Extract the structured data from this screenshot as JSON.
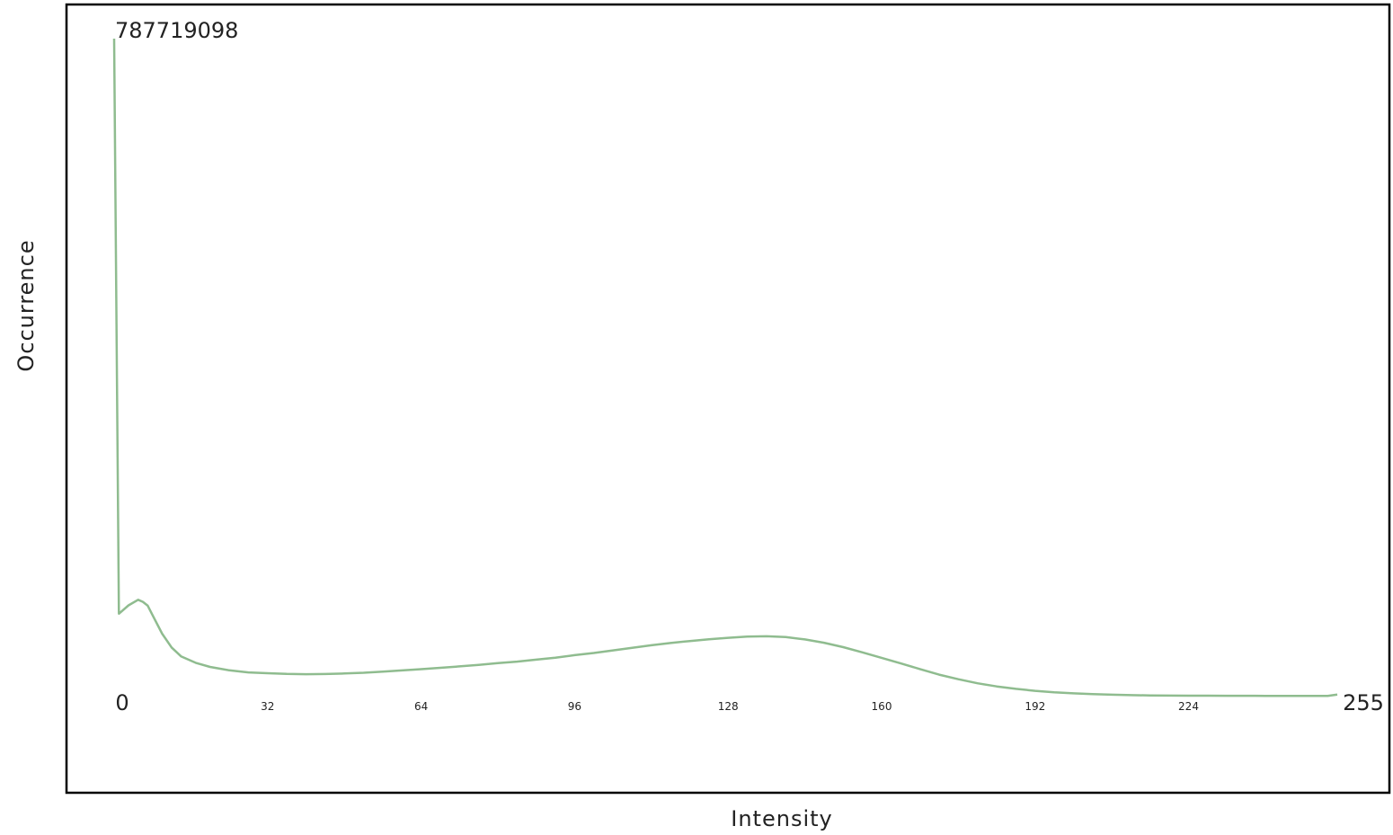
{
  "chart_data": {
    "type": "line",
    "xlabel": "Intensity",
    "ylabel": "Occurrence",
    "max_label": "787719098",
    "xlim": [
      0,
      255
    ],
    "ylim": [
      0,
      787719098
    ],
    "x_ticks": [
      {
        "value": 0,
        "label": "0",
        "size": "large"
      },
      {
        "value": 32,
        "label": "32",
        "size": "small"
      },
      {
        "value": 64,
        "label": "64",
        "size": "small"
      },
      {
        "value": 96,
        "label": "96",
        "size": "small"
      },
      {
        "value": 128,
        "label": "128",
        "size": "small"
      },
      {
        "value": 160,
        "label": "160",
        "size": "small"
      },
      {
        "value": 192,
        "label": "192",
        "size": "small"
      },
      {
        "value": 224,
        "label": "224",
        "size": "small"
      },
      {
        "value": 255,
        "label": "255",
        "size": "large"
      }
    ],
    "grid": false,
    "line_color": "#8fbc8f",
    "series": [
      {
        "points": [
          [
            0,
            787719098
          ],
          [
            1,
            100200000
          ],
          [
            3,
            110100000
          ],
          [
            5,
            116800000
          ],
          [
            6,
            114300000
          ],
          [
            7,
            109700000
          ],
          [
            8,
            98500000
          ],
          [
            10,
            76300000
          ],
          [
            12,
            59800000
          ],
          [
            14,
            49000000
          ],
          [
            17,
            41500000
          ],
          [
            20,
            36500000
          ],
          [
            24,
            32500000
          ],
          [
            28,
            30000000
          ],
          [
            32,
            29000000
          ],
          [
            36,
            28200000
          ],
          [
            40,
            27800000
          ],
          [
            44,
            28000000
          ],
          [
            48,
            28700000
          ],
          [
            52,
            29600000
          ],
          [
            56,
            30900000
          ],
          [
            60,
            32300000
          ],
          [
            64,
            33900000
          ],
          [
            68,
            35500000
          ],
          [
            72,
            37200000
          ],
          [
            76,
            39000000
          ],
          [
            80,
            41000000
          ],
          [
            84,
            42900000
          ],
          [
            88,
            45200000
          ],
          [
            92,
            47600000
          ],
          [
            96,
            50600000
          ],
          [
            100,
            53200000
          ],
          [
            104,
            56300000
          ],
          [
            108,
            59400000
          ],
          [
            112,
            62400000
          ],
          [
            116,
            65100000
          ],
          [
            120,
            67500000
          ],
          [
            124,
            69600000
          ],
          [
            128,
            71400000
          ],
          [
            132,
            72800000
          ],
          [
            136,
            73200000
          ],
          [
            140,
            72200000
          ],
          [
            144,
            69400000
          ],
          [
            148,
            65400000
          ],
          [
            152,
            60200000
          ],
          [
            156,
            54000000
          ],
          [
            160,
            47400000
          ],
          [
            164,
            40700000
          ],
          [
            168,
            34000000
          ],
          [
            172,
            27300000
          ],
          [
            176,
            21800000
          ],
          [
            180,
            17000000
          ],
          [
            184,
            13200000
          ],
          [
            188,
            10300000
          ],
          [
            192,
            7900000
          ],
          [
            196,
            6100000
          ],
          [
            200,
            4900000
          ],
          [
            204,
            4000000
          ],
          [
            208,
            3300000
          ],
          [
            212,
            2800000
          ],
          [
            216,
            2500000
          ],
          [
            220,
            2300000
          ],
          [
            224,
            2200000
          ],
          [
            228,
            2100000
          ],
          [
            232,
            2000000
          ],
          [
            240,
            1900000
          ],
          [
            248,
            1900000
          ],
          [
            253,
            1900000
          ],
          [
            255,
            3600000
          ]
        ]
      }
    ]
  }
}
